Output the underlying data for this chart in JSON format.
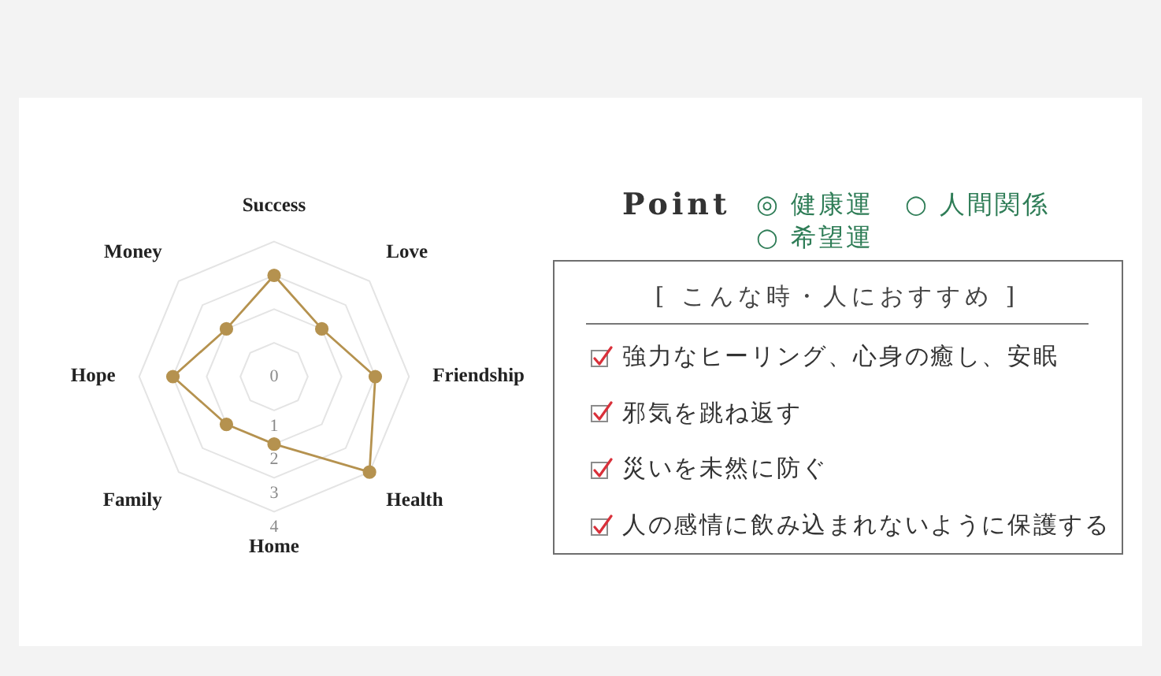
{
  "chart_data": [
    {
      "type": "radar",
      "categories": [
        "Success",
        "Love",
        "Friendship",
        "Health",
        "Home",
        "Family",
        "Hope",
        "Money"
      ],
      "series": [
        {
          "color": "#b5924f",
          "values": [
            3,
            2,
            3,
            4,
            2,
            2,
            3,
            2
          ]
        }
      ],
      "ylim": [
        0,
        4
      ],
      "yticks": [
        0,
        1,
        2,
        3,
        4
      ],
      "grid": true,
      "marker": "circle"
    },
    {
      "type": "other",
      "title": "Point",
      "annotations": [
        "◎ 健康運",
        "○ 人間関係",
        "○ 希望運"
      ]
    },
    {
      "type": "other",
      "title": "[ こんな時・人におすすめ ]",
      "annotations": [
        "強力なヒーリング、心身の癒し、安眠",
        "邪気を跳ね返す",
        "災いを未然に防ぐ",
        "人の感情に飲み込まれないように保護する"
      ]
    }
  ]
}
